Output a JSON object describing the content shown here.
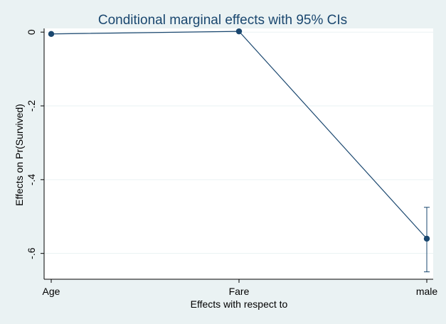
{
  "chart_data": {
    "type": "line",
    "title": "Conditional marginal effects with 95% CIs",
    "xlabel": "Effects with respect to",
    "ylabel": "Effects on Pr(Survived)",
    "categories": [
      "Age",
      "Fare",
      "male"
    ],
    "y_ticks": [
      0,
      -0.2,
      -0.4,
      -0.6
    ],
    "y_tick_labels": [
      "0",
      "-.2",
      "-.4",
      "-.6"
    ],
    "ylim": [
      -0.67,
      0.01
    ],
    "grid": true,
    "series": [
      {
        "values": [
          -0.005,
          0.002,
          -0.56
        ],
        "ci_low": [
          -0.005,
          0.002,
          -0.65
        ],
        "ci_high": [
          -0.005,
          0.002,
          -0.475
        ]
      }
    ],
    "colors": {
      "line": "#1a476f",
      "background": "#eaf2f3",
      "plot_area": "#ffffff"
    }
  }
}
